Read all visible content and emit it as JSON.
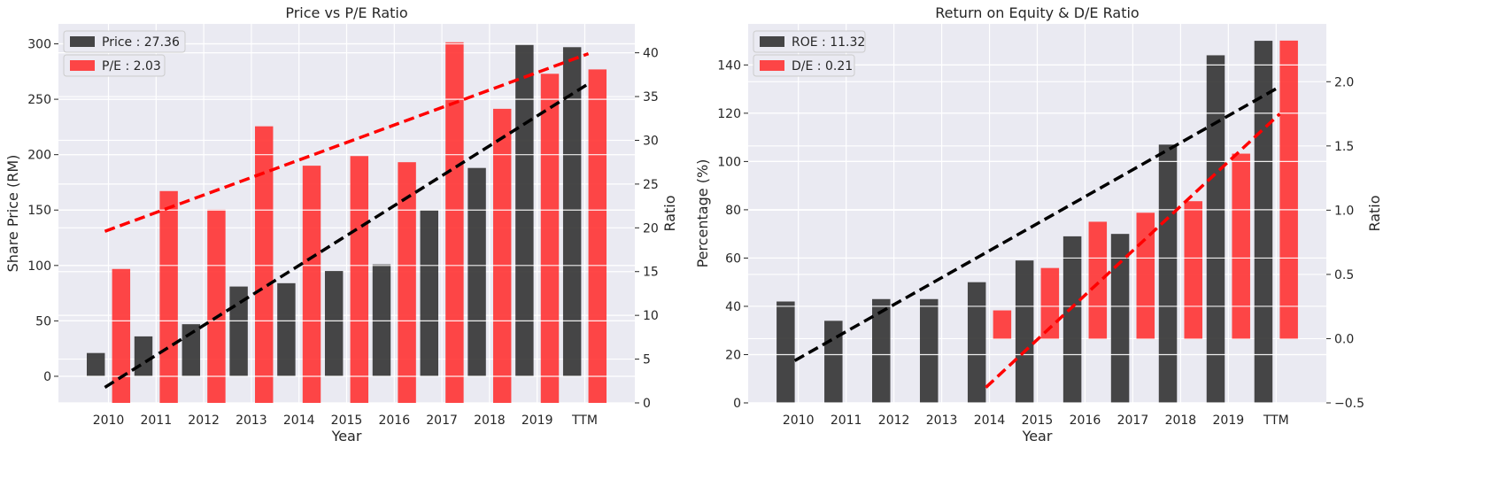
{
  "chart_data": [
    {
      "type": "bar",
      "title": "Price vs P/E Ratio",
      "xlabel": "Year",
      "ylabel": "Share Price (RM)",
      "ylabel_right": "Ratio",
      "categories": [
        "2010",
        "2011",
        "2012",
        "2013",
        "2014",
        "2015",
        "2016",
        "2017",
        "2018",
        "2019",
        "TTM"
      ],
      "ylim": [
        -24,
        318
      ],
      "ylim_right": [
        0,
        43.3
      ],
      "yticks": [
        0,
        50,
        100,
        150,
        200,
        250,
        300
      ],
      "yticks_right": [
        0,
        5,
        10,
        15,
        20,
        25,
        30,
        35,
        40
      ],
      "series": [
        {
          "name": "Price : 27.36",
          "axis": "left",
          "color": "#333333",
          "values": [
            21,
            36,
            47,
            81,
            84,
            95,
            101,
            150,
            188,
            299,
            297
          ],
          "trend": [
            -10,
            264
          ]
        },
        {
          "name": "P/E : 2.03",
          "axis": "right",
          "color": "#ff3333",
          "values": [
            15.3,
            24.2,
            22.1,
            31.6,
            27.1,
            28.2,
            27.5,
            41.2,
            33.6,
            37.6,
            38.1
          ],
          "trend": [
            19.6,
            39.9
          ]
        }
      ],
      "legend": "top-left",
      "grid": true
    },
    {
      "type": "bar",
      "title": "Return on Equity & D/E Ratio",
      "xlabel": "Year",
      "ylabel": "Percentage (%)",
      "ylabel_right": "Ratio",
      "categories": [
        "2010",
        "2011",
        "2012",
        "2013",
        "2014",
        "2015",
        "2016",
        "2017",
        "2018",
        "2019",
        "TTM"
      ],
      "ylim": [
        0,
        157
      ],
      "ylim_right": [
        -0.5,
        2.45
      ],
      "yticks": [
        0,
        20,
        40,
        60,
        80,
        100,
        120,
        140
      ],
      "yticks_right": [
        -0.5,
        0.0,
        0.5,
        1.0,
        1.5,
        2.0
      ],
      "series": [
        {
          "name": "ROE : 11.32",
          "axis": "left",
          "color": "#333333",
          "values": [
            42,
            34,
            43,
            43,
            50,
            59,
            69,
            70,
            107,
            144,
            150
          ],
          "trend": [
            17.5,
            131
          ]
        },
        {
          "name": "D/E : 0.21",
          "axis": "right",
          "color": "#ff3333",
          "values": [
            null,
            null,
            null,
            null,
            0.22,
            0.55,
            0.91,
            0.98,
            1.07,
            1.44,
            2.32
          ],
          "trend": [
            -0.38,
            1.75
          ]
        }
      ],
      "legend": "top-left",
      "grid": true
    }
  ]
}
